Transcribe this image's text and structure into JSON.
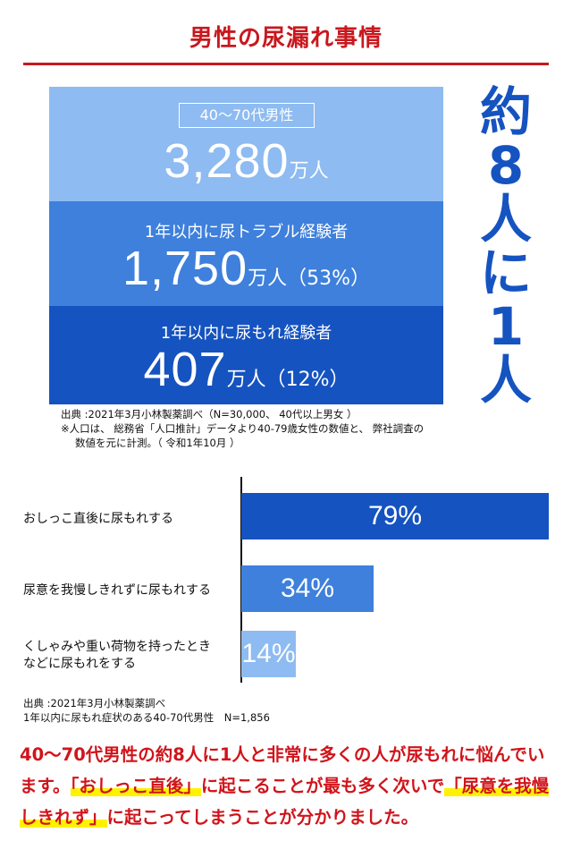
{
  "title": "男性の尿漏れ事情",
  "stats": [
    {
      "label": "40～70代男性",
      "value": "3,280",
      "unit": "万人",
      "pct": ""
    },
    {
      "label": "1年以内に尿トラブル経験者",
      "value": "1,750",
      "unit": "万人",
      "pct": "（53%）"
    },
    {
      "label": "1年以内に尿もれ経験者",
      "value": "407",
      "unit": "万人",
      "pct": "（12%）"
    }
  ],
  "ratio_chars": [
    "約",
    "8",
    "人",
    "に",
    "1",
    "人"
  ],
  "notes": {
    "line1": "出典 :2021年3月小林製薬調べ（N=30,000、 40代以上男女 ）",
    "line2": "※人口は、 総務省「人口推計」データより40-79歳女性の数値と、 弊社調査の",
    "line3": "数値を元に計測。（ 令和1年10月 ）"
  },
  "chart_data": {
    "type": "bar",
    "orientation": "horizontal",
    "categories": [
      "おしっこ直後に尿もれする",
      "尿意を我慢しきれずに尿もれする",
      "くしゃみや重い荷物を持ったときなどに尿もれをする"
    ],
    "category_lines": [
      [
        "おしっこ直後に尿もれする"
      ],
      [
        "尿意を我慢しきれずに尿もれする"
      ],
      [
        "くしゃみや重い荷物を持ったとき",
        "などに尿もれをする"
      ]
    ],
    "values": [
      79,
      34,
      14
    ],
    "labels": [
      "79%",
      "34%",
      "14%"
    ],
    "colors": [
      "#1553c0",
      "#3e80dc",
      "#8ebbf1"
    ],
    "xlim": [
      0,
      79
    ]
  },
  "source": {
    "line1": "出典 :2021年3月小林製薬調べ",
    "line2": "1年以内に尿もれ症状のある40-70代男性　N=1,856"
  },
  "summary": {
    "p1": "40～70代男性の約8人に1人と非常に多くの人が尿もれに悩んでいます。",
    "h1": "「おしっこ直後」",
    "p2": "に起こることが最も多く次いで",
    "h2": "「尿意を我慢しきれず」",
    "p3": "に起こってしまうことが分かりました。"
  }
}
